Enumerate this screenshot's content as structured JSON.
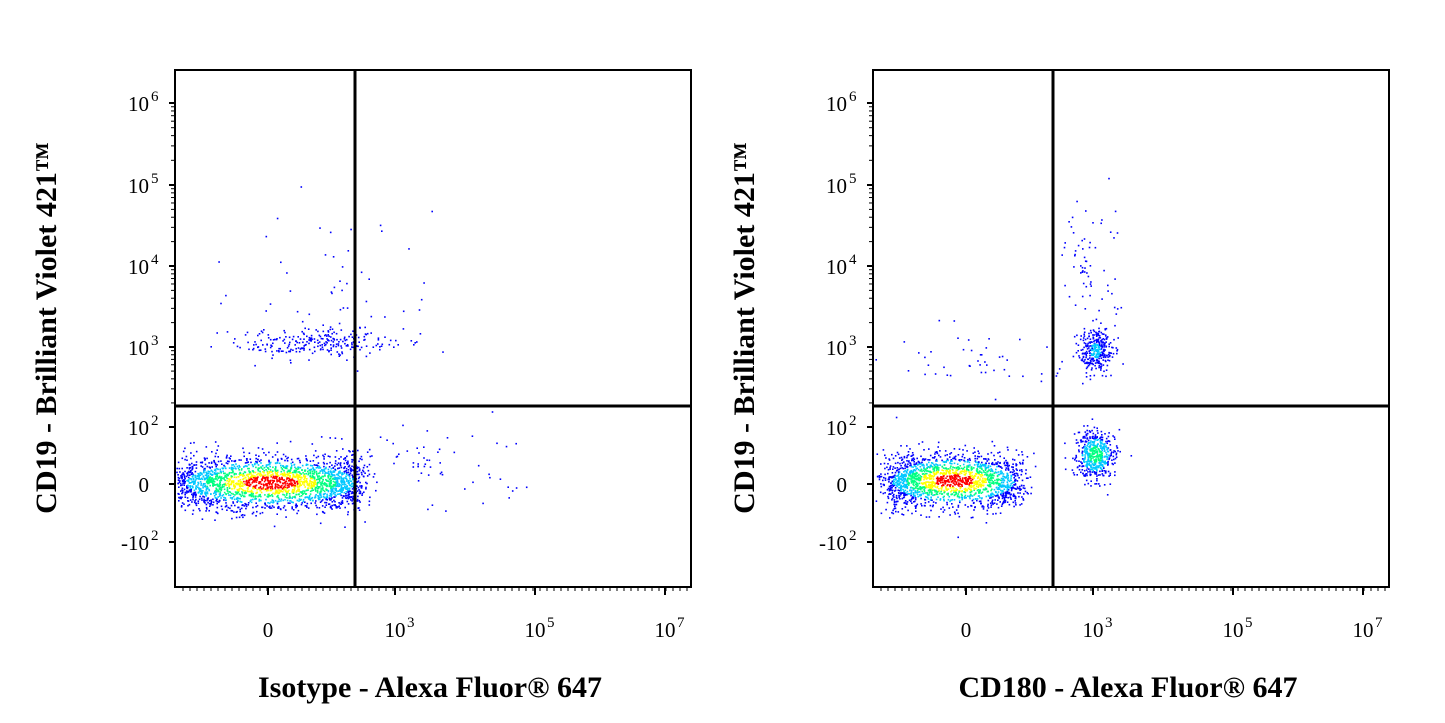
{
  "chart_data": [
    {
      "type": "scatter",
      "xlabel": "Isotype - Alexa Fluor® 647",
      "ylabel": "CD19 - Brilliant Violet 421™",
      "x_scale": "biexponential",
      "y_scale": "biexponential",
      "x_ticks": [
        {
          "base": "0",
          "exp": ""
        },
        {
          "base": "10",
          "exp": "3"
        },
        {
          "base": "10",
          "exp": "5"
        },
        {
          "base": "10",
          "exp": "7"
        }
      ],
      "y_ticks": [
        {
          "base": "10",
          "exp": "6"
        },
        {
          "base": "10",
          "exp": "5"
        },
        {
          "base": "10",
          "exp": "4"
        },
        {
          "base": "10",
          "exp": "3"
        },
        {
          "base": "10",
          "exp": "2"
        },
        {
          "base": "0",
          "exp": ""
        },
        {
          "base": "-10",
          "exp": "2"
        }
      ],
      "quadrant_gate": {
        "x": 200,
        "y": 150
      },
      "populations": [
        {
          "name": "CD19- / Isotype-",
          "x_center": 0,
          "y_center": 0,
          "density": "very high"
        },
        {
          "name": "CD19+ / Isotype-",
          "x_center": 100,
          "y_center": 1000,
          "density": "low"
        }
      ],
      "grid": false
    },
    {
      "type": "scatter",
      "xlabel": "CD180 - Alexa Fluor® 647",
      "ylabel": "CD19 - Brilliant Violet 421™",
      "x_scale": "biexponential",
      "y_scale": "biexponential",
      "x_ticks": [
        {
          "base": "0",
          "exp": ""
        },
        {
          "base": "10",
          "exp": "3"
        },
        {
          "base": "10",
          "exp": "5"
        },
        {
          "base": "10",
          "exp": "7"
        }
      ],
      "y_ticks": [
        {
          "base": "10",
          "exp": "6"
        },
        {
          "base": "10",
          "exp": "5"
        },
        {
          "base": "10",
          "exp": "4"
        },
        {
          "base": "10",
          "exp": "3"
        },
        {
          "base": "10",
          "exp": "2"
        },
        {
          "base": "0",
          "exp": ""
        },
        {
          "base": "-10",
          "exp": "2"
        }
      ],
      "quadrant_gate": {
        "x": 200,
        "y": 150
      },
      "populations": [
        {
          "name": "CD19- / CD180-",
          "x_center": -20,
          "y_center": 0,
          "density": "very high"
        },
        {
          "name": "CD19- / CD180+",
          "x_center": 1000,
          "y_center": 30,
          "density": "medium"
        },
        {
          "name": "CD19+ / CD180+",
          "x_center": 1000,
          "y_center": 800,
          "density": "low"
        }
      ],
      "grid": false
    }
  ],
  "colors": {
    "low_density": "#0000ff",
    "mid_low": "#00c8ff",
    "mid": "#00ff80",
    "mid_high": "#ffff00",
    "high_density": "#ff0000",
    "gate": "#000000"
  }
}
